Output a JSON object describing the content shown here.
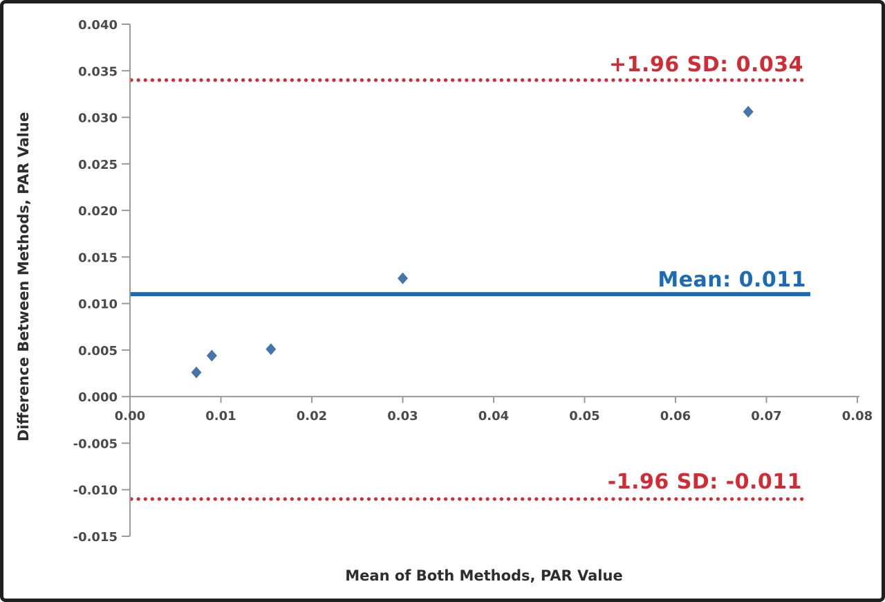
{
  "chart_data": {
    "type": "scatter",
    "chart_kind": "bland-altman-agreement-plot",
    "title": "",
    "xlabel": "Mean of Both Methods, PAR Value",
    "ylabel": "Difference Between Methods, PAR Value",
    "xlim": [
      0,
      0.08
    ],
    "ylim": [
      -0.015,
      0.04
    ],
    "x_tick_labels": [
      "0.00",
      "0.01",
      "0.02",
      "0.03",
      "0.04",
      "0.05",
      "0.06",
      "0.07",
      "0.08"
    ],
    "y_tick_labels": [
      "0.040",
      "0.035",
      "0.030",
      "0.025",
      "0.020",
      "0.015",
      "0.010",
      "0.005",
      "0.000",
      "-0.005",
      "-0.010",
      "-0.015"
    ],
    "grid": false,
    "legend": null,
    "points": [
      {
        "mean": 0.0073,
        "difference": 0.0026
      },
      {
        "mean": 0.009,
        "difference": 0.0044
      },
      {
        "mean": 0.0155,
        "difference": 0.0051
      },
      {
        "mean": 0.03,
        "difference": 0.0127
      },
      {
        "mean": 0.068,
        "difference": 0.0306
      }
    ],
    "mean_line": {
      "value": 0.011,
      "label": "Mean: 0.011"
    },
    "upper_limit": {
      "value": 0.034,
      "label": "+1.96 SD: 0.034"
    },
    "lower_limit": {
      "value": -0.011,
      "label": "-1.96 SD: -0.011"
    }
  },
  "colors": {
    "marker_blue": "#4476ae",
    "mean_line_blue": "#1b6bb7",
    "limit_red": "#d32b35",
    "axis_gray": "#9a9a9a",
    "tick_label_gray": "#4a4a4a",
    "axis_title_dark": "#2e2e2e",
    "frame_border": "#1f1f1f",
    "background": "#ffffff"
  }
}
